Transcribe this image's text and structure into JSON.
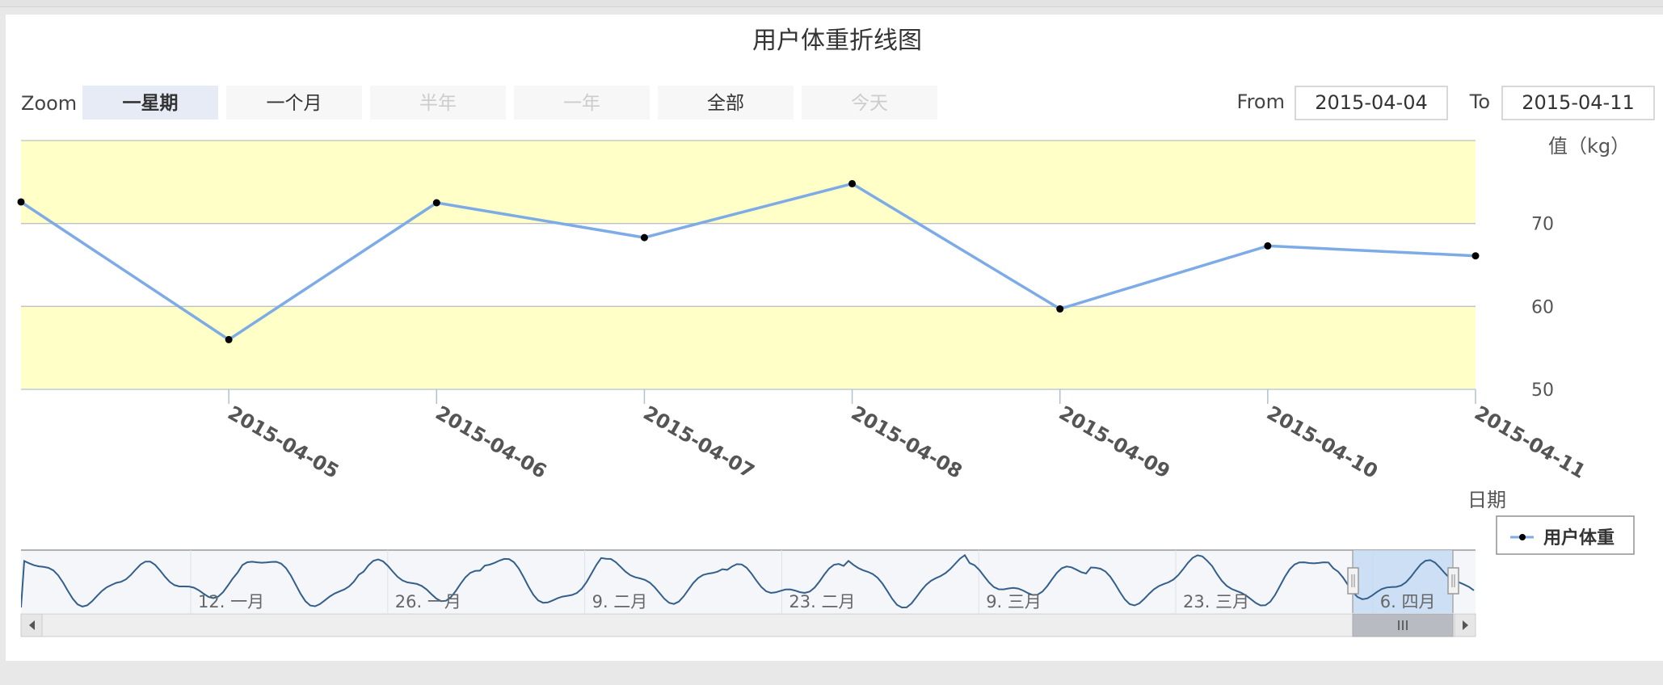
{
  "chart_data": {
    "type": "line",
    "title": "用户体重折线图",
    "xlabel": "日期",
    "ylabel": "值（kg）",
    "x": [
      "2015-04-04",
      "2015-04-05",
      "2015-04-06",
      "2015-04-07",
      "2015-04-08",
      "2015-04-09",
      "2015-04-10",
      "2015-04-11"
    ],
    "x_ticks": [
      "2015-04-05",
      "2015-04-06",
      "2015-04-07",
      "2015-04-08",
      "2015-04-09",
      "2015-04-10",
      "2015-04-11"
    ],
    "series": [
      {
        "name": "用户体重",
        "color": "#7cabe6",
        "values": [
          72.6,
          56.0,
          72.5,
          68.3,
          74.8,
          59.7,
          67.3,
          66.1
        ]
      }
    ],
    "ylim": [
      50,
      80
    ],
    "y_ticks": [
      50,
      60,
      70
    ],
    "plot_bands": [
      {
        "from": 50,
        "to": 60,
        "color": "#ffffc8"
      },
      {
        "from": 70,
        "to": 80,
        "color": "#ffffc8"
      }
    ],
    "grid": true,
    "legend_position": "right"
  },
  "range_selector": {
    "zoom_label": "Zoom",
    "buttons": [
      {
        "label": "一星期",
        "state": "selected"
      },
      {
        "label": "一个月",
        "state": "normal"
      },
      {
        "label": "半年",
        "state": "disabled"
      },
      {
        "label": "一年",
        "state": "disabled"
      },
      {
        "label": "全部",
        "state": "normal"
      },
      {
        "label": "今天",
        "state": "disabled"
      }
    ],
    "from_label": "From",
    "from_value": "2015-04-04",
    "to_label": "To",
    "to_value": "2015-04-11"
  },
  "navigator": {
    "tick_labels": [
      "12. 一月",
      "26. 一月",
      "9. 二月",
      "23. 二月",
      "9. 三月",
      "23. 三月",
      "6. 四月"
    ],
    "line_color": "#335f8a",
    "selection_color": "#c2d9f3"
  },
  "colors": {
    "selected_button_bg": "#e6ebf5",
    "button_bg": "#f7f7f7",
    "disabled_text": "#cccccc",
    "axis_text": "#555555"
  }
}
